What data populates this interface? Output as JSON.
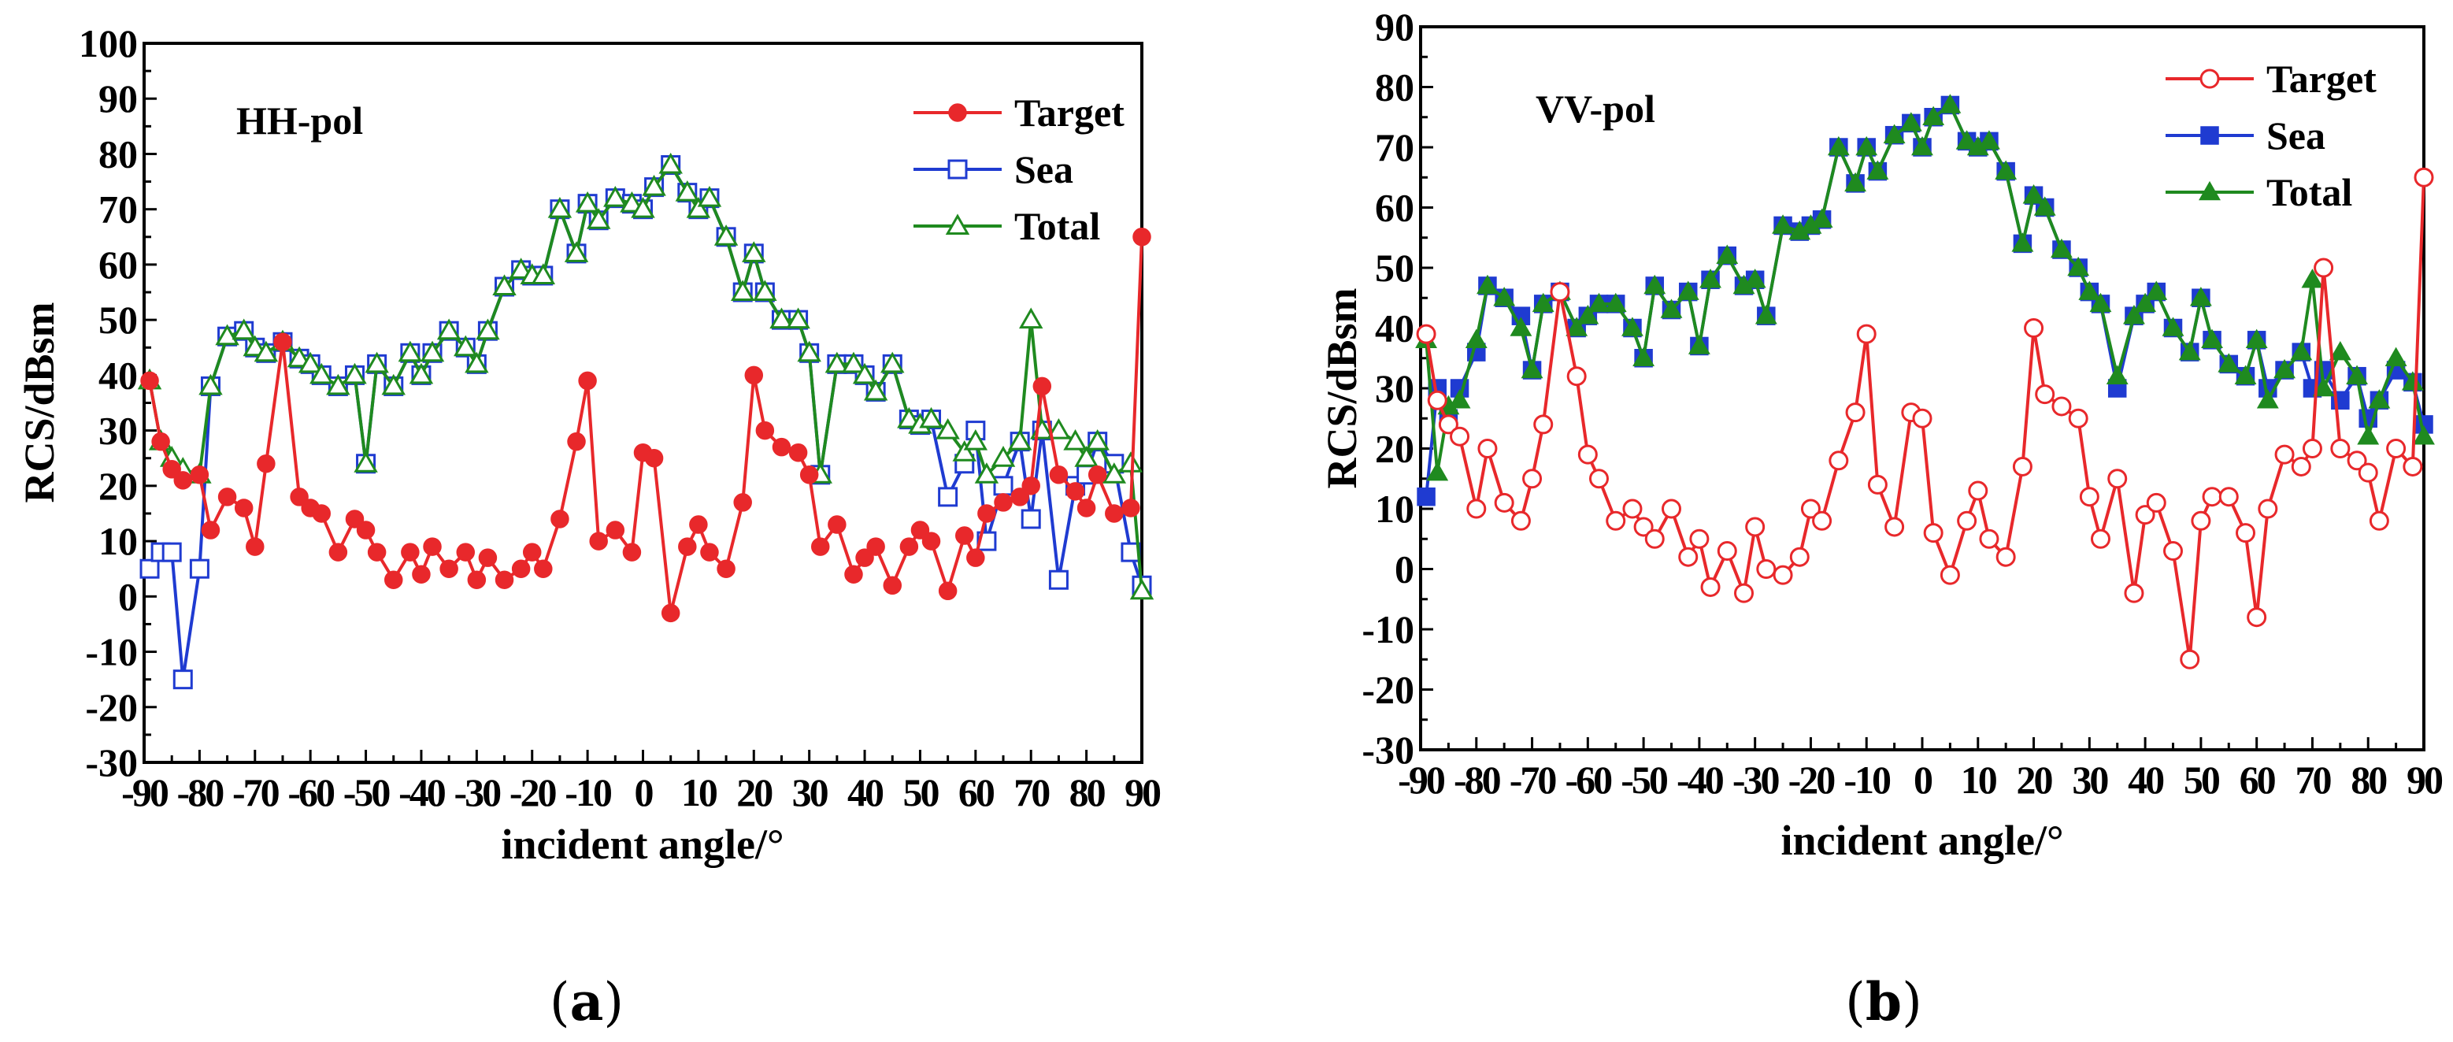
{
  "chart_data": [
    {
      "type": "line",
      "title": "HH-pol",
      "caption": "(a)",
      "caption_letter": "a",
      "xlabel": "incident angle/°",
      "ylabel": "RCS/dBsm",
      "xlim": [
        -90,
        90
      ],
      "ylim": [
        -30,
        100
      ],
      "xticks": [
        -90,
        -80,
        -70,
        -60,
        -50,
        -40,
        -30,
        -20,
        -10,
        0,
        10,
        20,
        30,
        40,
        50,
        60,
        70,
        80,
        90
      ],
      "yticks": [
        -30,
        -20,
        -10,
        0,
        10,
        20,
        30,
        40,
        50,
        60,
        70,
        80,
        90,
        100
      ],
      "legend_position": "top-right",
      "grid": false,
      "x": [
        -89,
        -87,
        -85,
        -83,
        -80,
        -78,
        -75,
        -72,
        -70,
        -68,
        -65,
        -62,
        -60,
        -58,
        -55,
        -52,
        -50,
        -48,
        -45,
        -42,
        -40,
        -38,
        -35,
        -32,
        -30,
        -28,
        -25,
        -22,
        -20,
        -18,
        -15,
        -12,
        -10,
        -8,
        -5,
        -2,
        0,
        2,
        5,
        8,
        10,
        12,
        15,
        18,
        20,
        22,
        25,
        28,
        30,
        32,
        35,
        38,
        40,
        42,
        45,
        48,
        50,
        52,
        55,
        58,
        60,
        62,
        65,
        68,
        70,
        72,
        75,
        78,
        80,
        82,
        85,
        88,
        90
      ],
      "series": [
        {
          "name": "Target",
          "color": "#e8282b",
          "marker": "filled-circle",
          "values": [
            39,
            28,
            23,
            21,
            22,
            12,
            18,
            16,
            9,
            24,
            46,
            18,
            16,
            15,
            8,
            14,
            12,
            8,
            3,
            8,
            4,
            9,
            5,
            8,
            3,
            7,
            3,
            5,
            8,
            5,
            14,
            28,
            39,
            10,
            12,
            8,
            26,
            25,
            -3,
            9,
            13,
            8,
            5,
            17,
            40,
            30,
            27,
            26,
            22,
            9,
            13,
            4,
            7,
            9,
            2,
            9,
            12,
            10,
            1,
            11,
            7,
            15,
            17,
            18,
            20,
            38,
            22,
            19,
            16,
            22,
            15,
            16,
            65
          ]
        },
        {
          "name": "Sea",
          "color": "#1f3bd1",
          "marker": "open-square",
          "values": [
            5,
            8,
            8,
            -15,
            5,
            38,
            47,
            48,
            45,
            44,
            46,
            43,
            42,
            40,
            38,
            40,
            24,
            42,
            38,
            44,
            40,
            44,
            48,
            45,
            42,
            48,
            56,
            59,
            58,
            58,
            70,
            62,
            71,
            68,
            72,
            71,
            70,
            74,
            78,
            73,
            70,
            72,
            65,
            55,
            62,
            55,
            50,
            50,
            44,
            22,
            42,
            42,
            40,
            37,
            42,
            32,
            31,
            32,
            18,
            24,
            30,
            10,
            20,
            28,
            14,
            30,
            3,
            20,
            22,
            28,
            24,
            8,
            2
          ]
        },
        {
          "name": "Total",
          "color": "#1f8a1f",
          "marker": "open-triangle",
          "values": [
            39,
            28,
            25,
            23,
            22,
            38,
            47,
            48,
            45,
            44,
            46,
            43,
            42,
            40,
            38,
            40,
            24,
            42,
            38,
            44,
            40,
            44,
            48,
            45,
            42,
            48,
            56,
            59,
            58,
            58,
            70,
            62,
            71,
            68,
            72,
            71,
            70,
            74,
            78,
            73,
            70,
            72,
            65,
            55,
            62,
            55,
            50,
            50,
            44,
            22,
            42,
            42,
            40,
            37,
            42,
            32,
            31,
            32,
            30,
            26,
            28,
            22,
            25,
            28,
            50,
            30,
            30,
            28,
            25,
            28,
            22,
            24,
            1
          ]
        }
      ]
    },
    {
      "type": "line",
      "title": "VV-pol",
      "caption": "(b)",
      "caption_letter": "b",
      "xlabel": "incident angle/°",
      "ylabel": "RCS/dBsm",
      "xlim": [
        -90,
        90
      ],
      "ylim": [
        -30,
        90
      ],
      "xticks": [
        -90,
        -80,
        -70,
        -60,
        -50,
        -40,
        -30,
        -20,
        -10,
        0,
        10,
        20,
        30,
        40,
        50,
        60,
        70,
        80,
        90
      ],
      "yticks": [
        -30,
        -20,
        -10,
        0,
        10,
        20,
        30,
        40,
        50,
        60,
        70,
        80,
        90
      ],
      "legend_position": "top-right",
      "grid": false,
      "x": [
        -89,
        -87,
        -85,
        -83,
        -80,
        -78,
        -75,
        -72,
        -70,
        -68,
        -65,
        -62,
        -60,
        -58,
        -55,
        -52,
        -50,
        -48,
        -45,
        -42,
        -40,
        -38,
        -35,
        -32,
        -30,
        -28,
        -25,
        -22,
        -20,
        -18,
        -15,
        -12,
        -10,
        -8,
        -5,
        -2,
        0,
        2,
        5,
        8,
        10,
        12,
        15,
        18,
        20,
        22,
        25,
        28,
        30,
        32,
        35,
        38,
        40,
        42,
        45,
        48,
        50,
        52,
        55,
        58,
        60,
        62,
        65,
        68,
        70,
        72,
        75,
        78,
        80,
        82,
        85,
        88,
        90
      ],
      "series": [
        {
          "name": "Target",
          "color": "#e8282b",
          "marker": "open-circle",
          "values": [
            39,
            28,
            24,
            22,
            10,
            20,
            11,
            8,
            15,
            24,
            46,
            32,
            19,
            15,
            8,
            10,
            7,
            5,
            10,
            2,
            5,
            -3,
            3,
            -4,
            7,
            0,
            -1,
            2,
            10,
            8,
            18,
            26,
            39,
            14,
            7,
            26,
            25,
            6,
            -1,
            8,
            13,
            5,
            2,
            17,
            40,
            29,
            27,
            25,
            12,
            5,
            15,
            -4,
            9,
            11,
            3,
            -15,
            8,
            12,
            12,
            6,
            -8,
            10,
            19,
            17,
            20,
            50,
            20,
            18,
            16,
            8,
            20,
            17,
            65
          ]
        },
        {
          "name": "Sea",
          "color": "#1f3bd1",
          "marker": "filled-square",
          "values": [
            12,
            30,
            25,
            30,
            36,
            47,
            45,
            42,
            33,
            44,
            46,
            40,
            42,
            44,
            44,
            40,
            35,
            47,
            43,
            46,
            37,
            48,
            52,
            47,
            48,
            42,
            57,
            56,
            57,
            58,
            70,
            64,
            70,
            66,
            72,
            74,
            70,
            75,
            77,
            71,
            70,
            71,
            66,
            54,
            62,
            60,
            53,
            50,
            46,
            44,
            30,
            42,
            44,
            46,
            40,
            36,
            45,
            38,
            34,
            32,
            38,
            30,
            33,
            36,
            30,
            33,
            28,
            32,
            25,
            28,
            33,
            31,
            24
          ]
        },
        {
          "name": "Total",
          "color": "#1f8a1f",
          "marker": "filled-triangle",
          "values": [
            38,
            16,
            27,
            28,
            38,
            47,
            45,
            40,
            33,
            44,
            46,
            40,
            42,
            44,
            44,
            40,
            35,
            47,
            43,
            46,
            37,
            48,
            52,
            47,
            48,
            42,
            57,
            56,
            57,
            58,
            70,
            64,
            70,
            66,
            72,
            74,
            70,
            75,
            77,
            71,
            70,
            71,
            66,
            54,
            62,
            60,
            53,
            50,
            46,
            44,
            32,
            42,
            44,
            46,
            40,
            36,
            45,
            38,
            34,
            32,
            38,
            28,
            33,
            36,
            48,
            30,
            36,
            32,
            22,
            28,
            35,
            31,
            22
          ]
        }
      ]
    }
  ]
}
